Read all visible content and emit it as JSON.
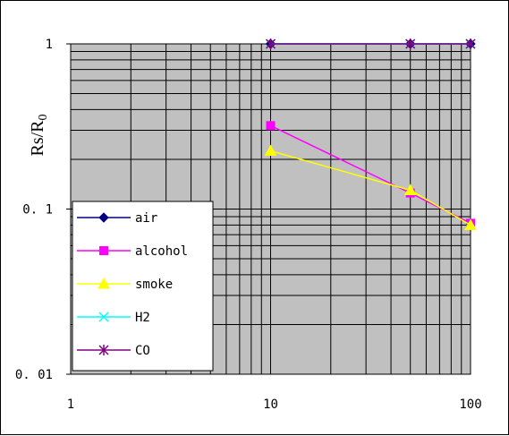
{
  "chart_data": {
    "type": "line",
    "xscale": "log",
    "yscale": "log",
    "xlim": [
      1,
      100
    ],
    "ylim": [
      0.01,
      1
    ],
    "x_ticks": [
      "1",
      "10",
      "100"
    ],
    "y_ticks": [
      "0. 01",
      "0. 1",
      "1"
    ],
    "ylabel": "Rs/R0",
    "xlabel": "",
    "grid": true,
    "legend_position": "bottom-left",
    "plot_background": "#c0c0c0",
    "series": [
      {
        "name": "air",
        "color": "#000080",
        "marker": "diamond",
        "x": [
          10,
          50,
          100
        ],
        "y": [
          1,
          1,
          1
        ]
      },
      {
        "name": "alcohol",
        "color": "#ff00ff",
        "marker": "square",
        "x": [
          10,
          50,
          100
        ],
        "y": [
          0.32,
          0.125,
          0.082
        ]
      },
      {
        "name": "smoke",
        "color": "#ffff00",
        "marker": "triangle",
        "x": [
          10,
          50,
          100
        ],
        "y": [
          0.225,
          0.13,
          0.08
        ]
      },
      {
        "name": "H2",
        "color": "#00ffff",
        "marker": "x",
        "x": [
          10,
          50,
          100
        ],
        "y": [
          1,
          1,
          1
        ]
      },
      {
        "name": "CO",
        "color": "#800080",
        "marker": "star",
        "x": [
          10,
          50,
          100
        ],
        "y": [
          1,
          1,
          1
        ]
      }
    ]
  }
}
